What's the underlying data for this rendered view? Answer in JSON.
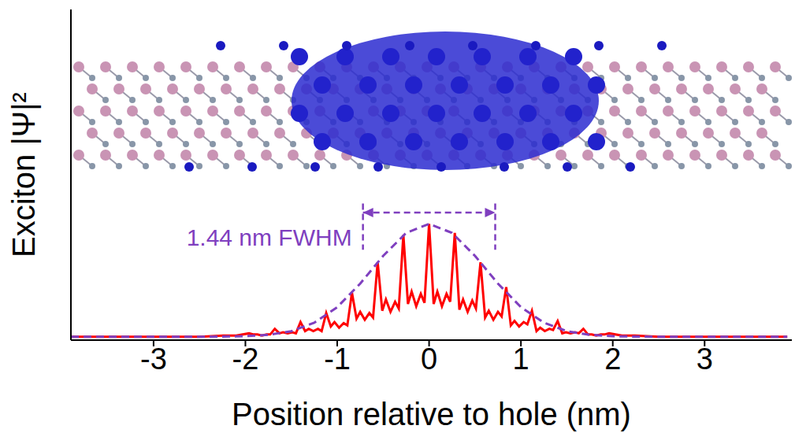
{
  "chart_data": {
    "type": "line",
    "x_label": "Position relative to hole (nm)",
    "y_label": "Exciton |Ψ|²",
    "xlim": [
      -3.9,
      3.95
    ],
    "xticks": [
      -3,
      -2,
      -1,
      0,
      1,
      2,
      3
    ],
    "ylim": [
      -0.03,
      2.9
    ],
    "yticks": [],
    "tick_labels": "x",
    "grid": false,
    "series": [
      {
        "color": "#ff0000",
        "line_style": "solid",
        "x": [
          -3.9,
          -3.0,
          -2.5,
          -2.24,
          -2.1,
          -1.96,
          -1.91,
          -1.87,
          -1.82,
          -1.77,
          -1.73,
          -1.68,
          -1.63,
          -1.59,
          -1.54,
          -1.49,
          -1.45,
          -1.4,
          -1.35,
          -1.31,
          -1.26,
          -1.21,
          -1.17,
          -1.12,
          -1.07,
          -1.03,
          -0.98,
          -0.93,
          -0.89,
          -0.84,
          -0.79,
          -0.75,
          -0.7,
          -0.65,
          -0.61,
          -0.56,
          -0.51,
          -0.47,
          -0.42,
          -0.37,
          -0.33,
          -0.28,
          -0.23,
          -0.19,
          -0.14,
          -0.09,
          -0.05,
          0,
          0.05,
          0.09,
          0.14,
          0.19,
          0.23,
          0.28,
          0.33,
          0.37,
          0.42,
          0.47,
          0.51,
          0.56,
          0.61,
          0.65,
          0.7,
          0.75,
          0.79,
          0.84,
          0.89,
          0.93,
          0.98,
          1.03,
          1.07,
          1.12,
          1.17,
          1.21,
          1.26,
          1.31,
          1.35,
          1.4,
          1.45,
          1.49,
          1.54,
          1.59,
          1.63,
          1.68,
          1.73,
          1.77,
          1.82,
          1.87,
          1.91,
          1.96,
          2.1,
          2.24,
          2.5,
          3.0,
          3.9
        ],
        "values": [
          0,
          0,
          0,
          0.01,
          0.01,
          0.03,
          0.02,
          0.02,
          0.01,
          0.02,
          0.02,
          0.07,
          0.03,
          0.04,
          0.03,
          0.04,
          0.03,
          0.13,
          0.05,
          0.07,
          0.05,
          0.07,
          0.05,
          0.21,
          0.09,
          0.13,
          0.08,
          0.12,
          0.1,
          0.39,
          0.16,
          0.22,
          0.15,
          0.21,
          0.17,
          0.66,
          0.23,
          0.33,
          0.22,
          0.31,
          0.25,
          0.9,
          0.29,
          0.4,
          0.27,
          0.38,
          0.3,
          1.0,
          0.29,
          0.4,
          0.27,
          0.38,
          0.31,
          0.92,
          0.24,
          0.33,
          0.22,
          0.32,
          0.25,
          0.66,
          0.17,
          0.23,
          0.15,
          0.22,
          0.18,
          0.44,
          0.1,
          0.14,
          0.09,
          0.13,
          0.11,
          0.23,
          0.05,
          0.08,
          0.05,
          0.07,
          0.06,
          0.14,
          0.03,
          0.04,
          0.03,
          0.04,
          0.03,
          0.07,
          0.02,
          0.02,
          0.01,
          0.02,
          0.02,
          0.03,
          0.01,
          0.01,
          0,
          0,
          0
        ]
      },
      {
        "color": "#7f3fbf",
        "line_style": "dashed",
        "x": [
          -3.9,
          -3.0,
          -2.5,
          -2.25,
          -2.0,
          -1.75,
          -1.5,
          -1.25,
          -1.0,
          -0.75,
          -0.5,
          -0.25,
          0,
          0.25,
          0.5,
          0.75,
          1.0,
          1.25,
          1.5,
          1.75,
          2.0,
          2.25,
          2.5,
          3.0,
          3.9
        ],
        "values": [
          0,
          0,
          0,
          0.001,
          0.005,
          0.017,
          0.049,
          0.124,
          0.262,
          0.471,
          0.716,
          0.92,
          1.0,
          0.92,
          0.716,
          0.471,
          0.262,
          0.124,
          0.049,
          0.017,
          0.005,
          0.001,
          0,
          0,
          0
        ]
      }
    ],
    "annotations": [
      {
        "text": "1.44 nm FWHM",
        "x_range": [
          -0.72,
          0.72
        ],
        "color": "#7f3fbf"
      }
    ]
  }
}
